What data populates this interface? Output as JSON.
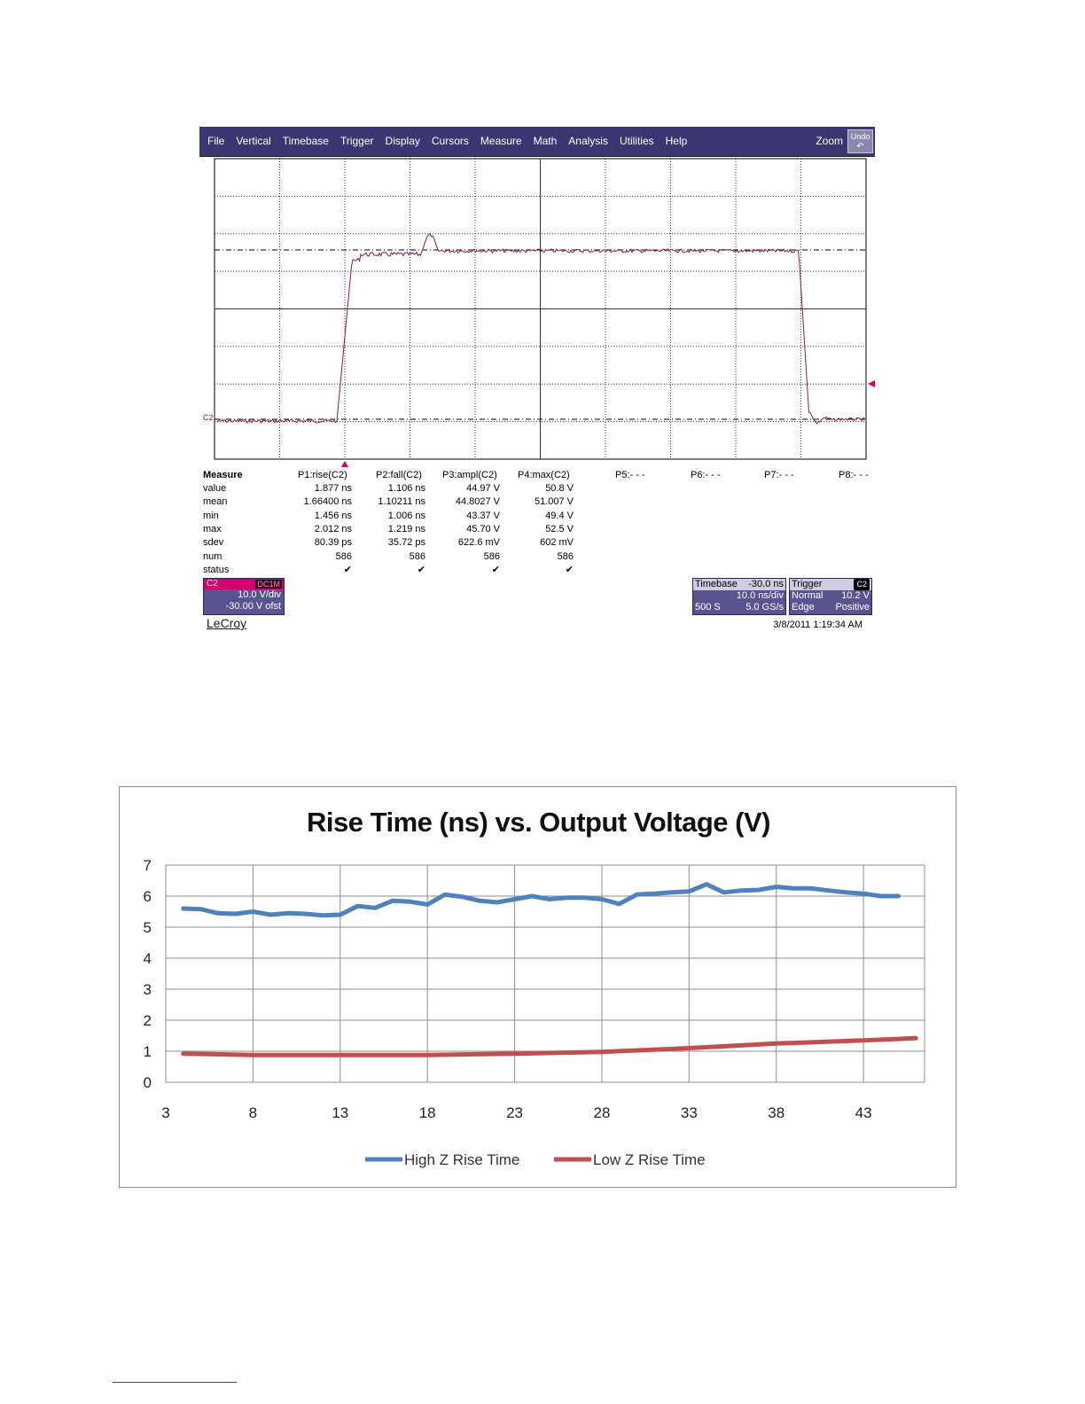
{
  "scope": {
    "menu": [
      "File",
      "Vertical",
      "Timebase",
      "Trigger",
      "Display",
      "Cursors",
      "Measure",
      "Math",
      "Analysis",
      "Utilities",
      "Help"
    ],
    "zoom_label": "Zoom",
    "undo_label": "Undo",
    "channel_marker": "C2",
    "measure": {
      "headers": [
        "Measure",
        "P1:rise(C2)",
        "P2:fall(C2)",
        "P3:ampl(C2)",
        "P4:max(C2)",
        "P5:- - -",
        "P6:- - -",
        "P7:- - -",
        "P8:- - -"
      ],
      "rows": [
        {
          "label": "value",
          "cells": [
            "1.877 ns",
            "1.106 ns",
            "44.97 V",
            "50.8 V"
          ]
        },
        {
          "label": "mean",
          "cells": [
            "1.66400 ns",
            "1.10211 ns",
            "44.8027 V",
            "51.007 V"
          ]
        },
        {
          "label": "min",
          "cells": [
            "1.456 ns",
            "1.006 ns",
            "43.37 V",
            "49.4 V"
          ]
        },
        {
          "label": "max",
          "cells": [
            "2.012 ns",
            "1.219 ns",
            "45.70 V",
            "52.5 V"
          ]
        },
        {
          "label": "sdev",
          "cells": [
            "80.39 ps",
            "35.72 ps",
            "622.6 mV",
            "602 mV"
          ]
        },
        {
          "label": "num",
          "cells": [
            "586",
            "586",
            "586",
            "586"
          ]
        },
        {
          "label": "status",
          "cells": [
            "✔",
            "✔",
            "✔",
            "✔"
          ]
        }
      ]
    },
    "channel_box": {
      "name": "C2",
      "coupling": "DC1M",
      "vdiv": "10.0 V/div",
      "offset": "-30.00 V ofst"
    },
    "timebase_box": {
      "title": "Timebase",
      "delay": "-30.0 ns",
      "tdiv": "10.0 ns/div",
      "samples": "500 S",
      "rate": "5.0 GS/s"
    },
    "trigger_box": {
      "title": "Trigger",
      "source": "C2",
      "mode": "Normal",
      "level": "10.2 V",
      "type": "Edge",
      "slope": "Positive"
    },
    "brand": "LeCroy",
    "timestamp": "3/8/2011 1:19:34 AM",
    "colors": {
      "menubar": "#3b3572",
      "trace": "#8b1c4d",
      "marker": "#d4006d",
      "box": "#5a5390"
    }
  },
  "chart_data": {
    "type": "line",
    "title": "Rise Time (ns) vs. Output Voltage (V)",
    "xlabel": "",
    "ylabel": "",
    "xlim": [
      3,
      46
    ],
    "ylim": [
      0,
      7
    ],
    "xticks": [
      3,
      8,
      13,
      18,
      23,
      28,
      33,
      38,
      43
    ],
    "yticks": [
      0,
      1,
      2,
      3,
      4,
      5,
      6,
      7
    ],
    "grid": true,
    "legend": "bottom",
    "series": [
      {
        "name": "High Z Rise Time",
        "color": "#4f81bd",
        "x": [
          4,
          5,
          6,
          7,
          8,
          9,
          10,
          11,
          12,
          13,
          14,
          15,
          16,
          17,
          18,
          19,
          20,
          21,
          22,
          23,
          24,
          25,
          26,
          27,
          28,
          29,
          30,
          31,
          32,
          33,
          34,
          35,
          36,
          37,
          38,
          39,
          40,
          41,
          42,
          43,
          44,
          45
        ],
        "values": [
          5.6,
          5.58,
          5.45,
          5.43,
          5.5,
          5.4,
          5.45,
          5.43,
          5.38,
          5.4,
          5.68,
          5.62,
          5.85,
          5.82,
          5.73,
          6.05,
          5.98,
          5.85,
          5.8,
          5.9,
          6.0,
          5.9,
          5.95,
          5.95,
          5.9,
          5.75,
          6.05,
          6.08,
          6.12,
          6.15,
          6.38,
          6.12,
          6.18,
          6.2,
          6.3,
          6.25,
          6.25,
          6.18,
          6.12,
          6.08,
          6.0,
          6.0
        ]
      },
      {
        "name": "Low Z Rise Time",
        "color": "#c0504d",
        "x": [
          4,
          8,
          13,
          18,
          23,
          28,
          33,
          38,
          43,
          46
        ],
        "values": [
          0.92,
          0.88,
          0.88,
          0.88,
          0.92,
          0.98,
          1.1,
          1.25,
          1.35,
          1.42
        ]
      }
    ]
  }
}
